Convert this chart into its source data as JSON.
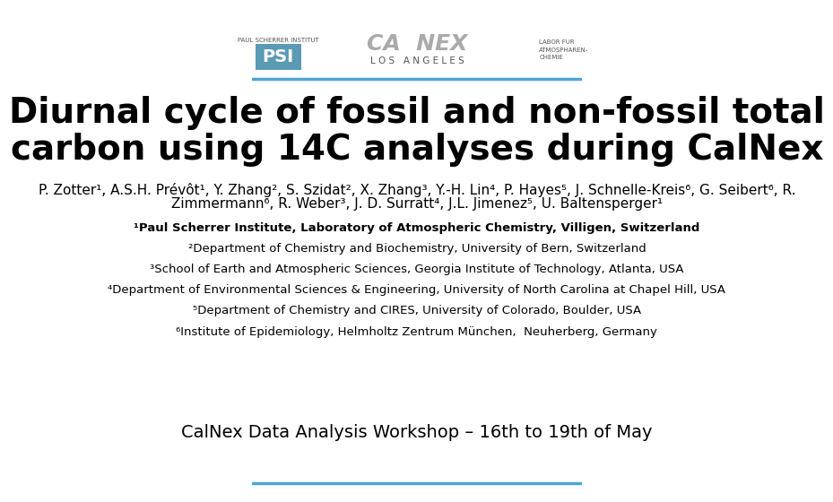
{
  "title_line1": "Diurnal cycle of fossil and non-fossil total",
  "title_line2_before_sup": "carbon using ",
  "title_sup": "14",
  "title_line2_after_sup": "C analyses during CalNex",
  "authors": "P. Zotter¹, A.S.H. Prévôt¹, Y. Zhang², S. Szidat², X. Zhang³, Y.-H. Lin⁴, P. Hayes⁵, J. Schnelle-Kreis⁶, G. Seibert⁶, R.",
  "authors2": "Zimmermann⁶, R. Weber³, J. D. Surratt⁴, J.L. Jimenez⁵, U. Baltensperger¹",
  "affil1": "¹Paul Scherrer Institute, Laboratory of Atmospheric Chemistry, Villigen, Switzerland",
  "affil2": "²Department of Chemistry and Biochemistry, University of Bern, Switzerland",
  "affil3": "³School of Earth and Atmospheric Sciences, Georgia Institute of Technology, Atlanta, USA",
  "affil4": "⁴Department of Environmental Sciences & Engineering, University of North Carolina at Chapel Hill, USA",
  "affil5": "⁵Department of Chemistry and CIRES, University of Colorado, Boulder, USA",
  "affil6": "⁶Institute of Epidemiology, Helmholtz Zentrum München,  Neuherberg, Germany",
  "workshop": "CalNex Data Analysis Workshop – 16",
  "workshop_sup1": "th",
  "workshop_mid": " to 19",
  "workshop_sup2": "th",
  "workshop_end": " of May",
  "bg_color": "#ffffff",
  "text_color": "#000000",
  "header_line_color": "#4da6d4",
  "footer_line_color": "#4da6d4",
  "title_fontsize": 28,
  "authors_fontsize": 11,
  "affil_fontsize": 9.5,
  "workshop_fontsize": 14
}
